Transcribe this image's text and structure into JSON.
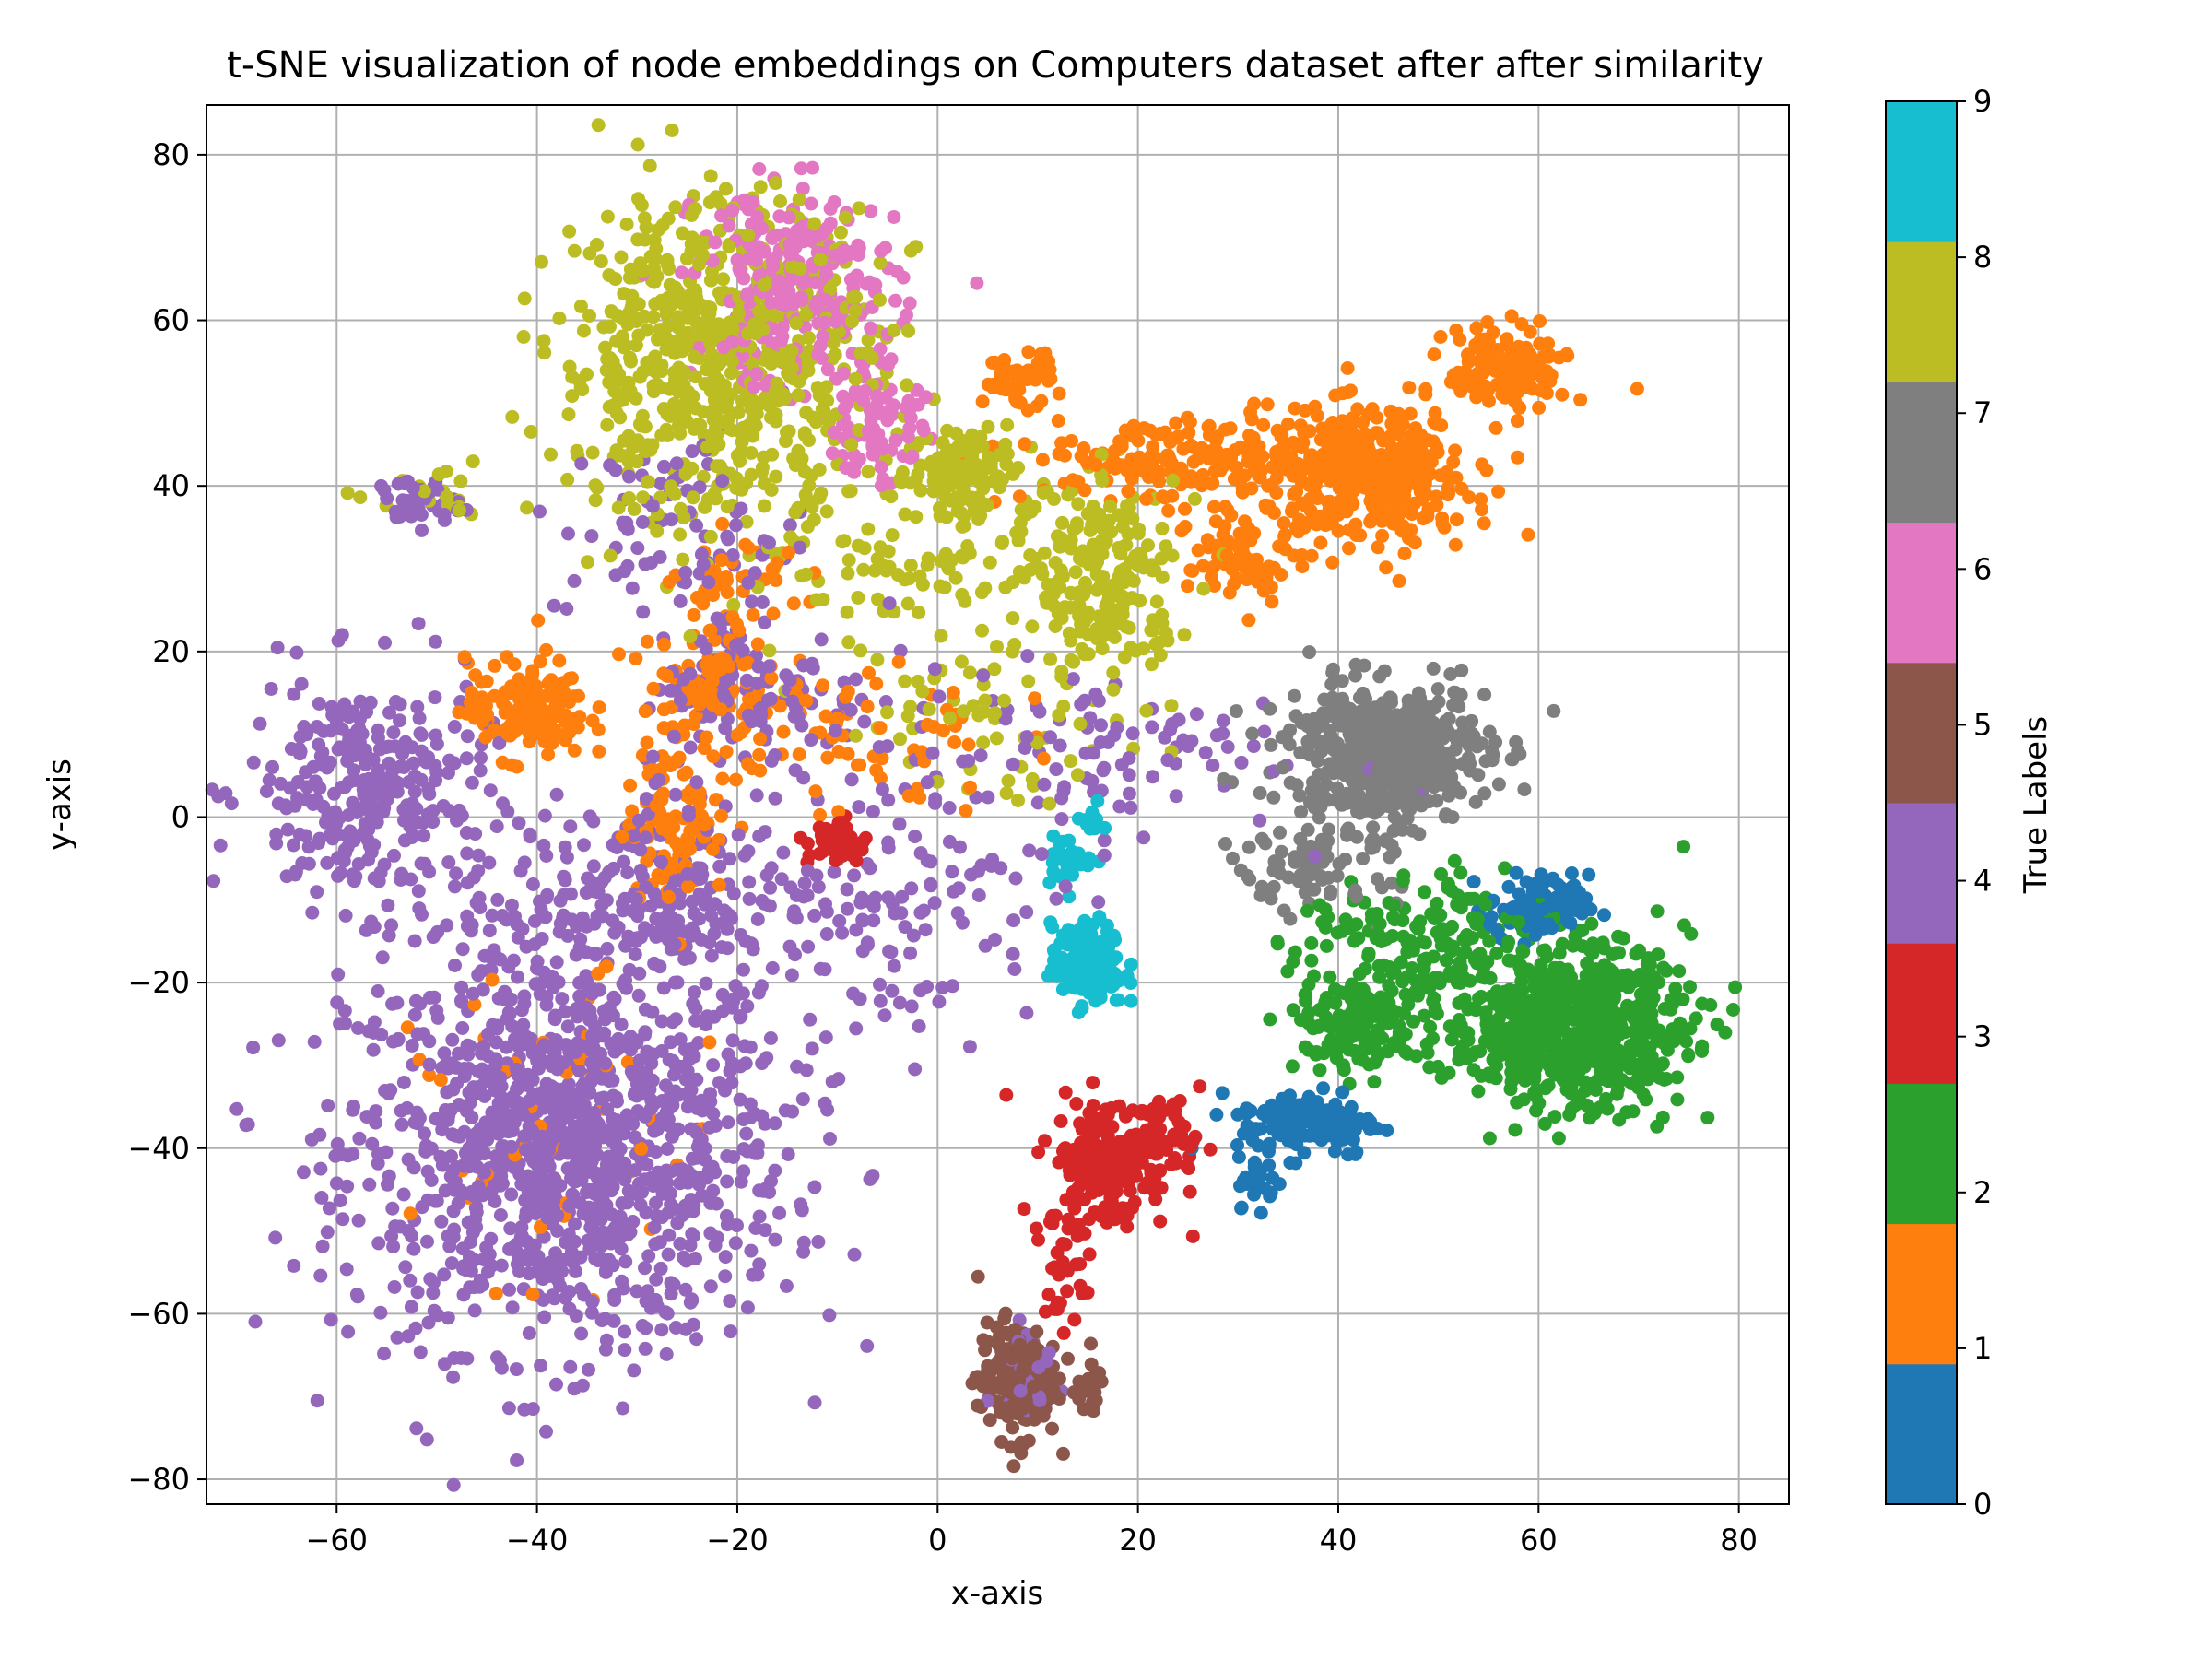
{
  "chart_data": {
    "type": "scatter",
    "title": "t-SNE visualization of node embeddings on Computers dataset after after similarity",
    "xlabel": "x-axis",
    "ylabel": "y-axis",
    "xlim": [
      -73,
      85
    ],
    "ylim": [
      -83,
      86
    ],
    "xticks": [
      -60,
      -40,
      -20,
      0,
      20,
      40,
      60,
      80
    ],
    "yticks": [
      -80,
      -60,
      -40,
      -20,
      0,
      20,
      40,
      60,
      80
    ],
    "grid": true,
    "colorbar": {
      "label": "True Labels",
      "ticks": [
        0,
        1,
        2,
        3,
        4,
        5,
        6,
        7,
        8,
        9
      ],
      "colors": [
        "#1f77b4",
        "#ff7f0e",
        "#2ca02c",
        "#d62728",
        "#9467bd",
        "#8c564b",
        "#e377c2",
        "#7f7f7f",
        "#bcbd22",
        "#17becf"
      ]
    },
    "clusters": [
      {
        "label": 4,
        "cx": -37,
        "cy": -40,
        "sx": 11,
        "sy": 12,
        "n": 1200
      },
      {
        "label": 4,
        "cx": -57,
        "cy": 3,
        "sx": 6,
        "sy": 7,
        "n": 300
      },
      {
        "label": 4,
        "cx": -30,
        "cy": -10,
        "sx": 9,
        "sy": 6,
        "n": 250
      },
      {
        "label": 4,
        "cx": -18,
        "cy": 15,
        "sx": 6,
        "sy": 5,
        "n": 120
      },
      {
        "label": 4,
        "cx": -5,
        "cy": -10,
        "sx": 8,
        "sy": 8,
        "n": 120
      },
      {
        "label": 4,
        "cx": -25,
        "cy": 35,
        "sx": 6,
        "sy": 6,
        "n": 80
      },
      {
        "label": 4,
        "cx": -52,
        "cy": 38,
        "sx": 2,
        "sy": 1.5,
        "n": 40
      },
      {
        "label": 4,
        "cx": 15,
        "cy": 8,
        "sx": 10,
        "sy": 5,
        "n": 100
      },
      {
        "label": 4,
        "cx": 9,
        "cy": -67,
        "sx": 2,
        "sy": 4,
        "n": 25
      },
      {
        "label": 1,
        "cx": -41,
        "cy": 13,
        "sx": 3,
        "sy": 3,
        "n": 150
      },
      {
        "label": 1,
        "cx": -26,
        "cy": 0,
        "sx": 2.5,
        "sy": 5,
        "n": 110
      },
      {
        "label": 1,
        "cx": -23,
        "cy": 17,
        "sx": 3,
        "sy": 3,
        "n": 80
      },
      {
        "label": 1,
        "cx": -10,
        "cy": 10,
        "sx": 8,
        "sy": 5,
        "n": 80
      },
      {
        "label": 1,
        "cx": 43,
        "cy": 41,
        "sx": 5,
        "sy": 4,
        "n": 400
      },
      {
        "label": 1,
        "cx": 25,
        "cy": 43,
        "sx": 8,
        "sy": 2.5,
        "n": 200
      },
      {
        "label": 1,
        "cx": 57,
        "cy": 54,
        "sx": 3,
        "sy": 2.5,
        "n": 150
      },
      {
        "label": 1,
        "cx": 30,
        "cy": 31,
        "sx": 2.5,
        "sy": 3,
        "n": 70
      },
      {
        "label": 1,
        "cx": 8,
        "cy": 53,
        "sx": 1.8,
        "sy": 1.6,
        "n": 50
      },
      {
        "label": 1,
        "cx": -20,
        "cy": 28,
        "sx": 3,
        "sy": 3,
        "n": 40
      },
      {
        "label": 1,
        "cx": -38,
        "cy": -38,
        "sx": 7,
        "sy": 9,
        "n": 50
      },
      {
        "label": 8,
        "cx": -22,
        "cy": 55,
        "sx": 8,
        "sy": 10,
        "n": 700
      },
      {
        "label": 8,
        "cx": 3,
        "cy": 42,
        "sx": 3,
        "sy": 3,
        "n": 120
      },
      {
        "label": 8,
        "cx": 17,
        "cy": 28,
        "sx": 3.5,
        "sy": 6,
        "n": 200
      },
      {
        "label": 8,
        "cx": 0,
        "cy": 30,
        "sx": 8,
        "sy": 5,
        "n": 100
      },
      {
        "label": 8,
        "cx": 5,
        "cy": 12,
        "sx": 8,
        "sy": 5,
        "n": 60
      },
      {
        "label": 8,
        "cx": -50,
        "cy": 38,
        "sx": 3,
        "sy": 1.5,
        "n": 20
      },
      {
        "label": 6,
        "cx": -14,
        "cy": 64,
        "sx": 5,
        "sy": 6,
        "n": 260
      },
      {
        "label": 6,
        "cx": -6,
        "cy": 48,
        "sx": 2.5,
        "sy": 4,
        "n": 80
      },
      {
        "label": 7,
        "cx": 45,
        "cy": 8,
        "sx": 5,
        "sy": 4,
        "n": 500
      },
      {
        "label": 7,
        "cx": 38,
        "cy": -5,
        "sx": 4,
        "sy": 3,
        "n": 100
      },
      {
        "label": 2,
        "cx": 63,
        "cy": -25,
        "sx": 6,
        "sy": 5,
        "n": 700
      },
      {
        "label": 2,
        "cx": 42,
        "cy": -25,
        "sx": 3,
        "sy": 3,
        "n": 150
      },
      {
        "label": 2,
        "cx": 48,
        "cy": -15,
        "sx": 6,
        "sy": 4,
        "n": 150
      },
      {
        "label": 0,
        "cx": 60,
        "cy": -11,
        "sx": 2.5,
        "sy": 2,
        "n": 100
      },
      {
        "label": 0,
        "cx": 37,
        "cy": -37,
        "sx": 3.5,
        "sy": 2,
        "n": 130
      },
      {
        "label": 0,
        "cx": 32,
        "cy": -44,
        "sx": 1,
        "sy": 1.5,
        "n": 30
      },
      {
        "label": 3,
        "cx": 17,
        "cy": -42,
        "sx": 3,
        "sy": 4,
        "n": 200
      },
      {
        "label": 3,
        "cx": 23,
        "cy": -38,
        "sx": 2,
        "sy": 2,
        "n": 40
      },
      {
        "label": 3,
        "cx": -10,
        "cy": -3,
        "sx": 1.5,
        "sy": 1.5,
        "n": 40
      },
      {
        "label": 3,
        "cx": 12,
        "cy": -55,
        "sx": 1.2,
        "sy": 4,
        "n": 25
      },
      {
        "label": 5,
        "cx": 8,
        "cy": -68,
        "sx": 2,
        "sy": 3.5,
        "n": 180
      },
      {
        "label": 5,
        "cx": 15,
        "cy": -69,
        "sx": 0.8,
        "sy": 1.5,
        "n": 25
      },
      {
        "label": 9,
        "cx": 15,
        "cy": -18,
        "sx": 1.8,
        "sy": 2.5,
        "n": 150
      },
      {
        "label": 9,
        "cx": 13,
        "cy": -5,
        "sx": 1.2,
        "sy": 1.5,
        "n": 30
      },
      {
        "label": 9,
        "cx": 16,
        "cy": 0,
        "sx": 1,
        "sy": 1,
        "n": 10
      }
    ]
  }
}
